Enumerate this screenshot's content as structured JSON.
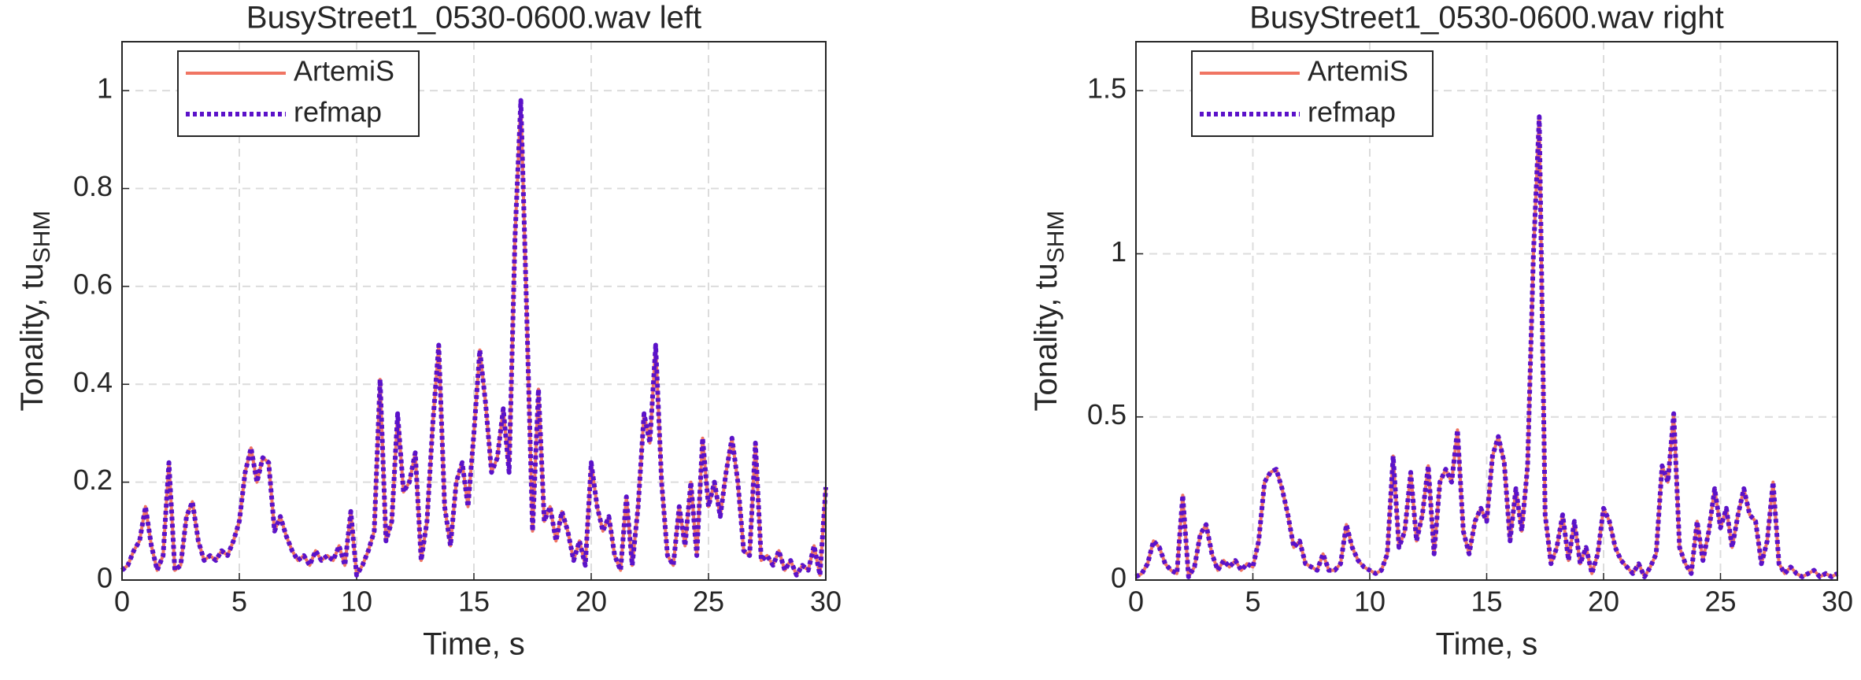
{
  "chart_data": [
    {
      "type": "line",
      "title": "BusyStreet1_0530-0600.wav left",
      "xlabel": "Time, s",
      "ylabel": "Tonality, tu",
      "ylabel_sub": "SHM",
      "xlim": [
        0,
        30
      ],
      "xticks": [
        0,
        5,
        10,
        15,
        20,
        25,
        30
      ],
      "ylim": [
        0,
        1.1
      ],
      "yticks": [
        0,
        0.2,
        0.4,
        0.6,
        0.8,
        1
      ],
      "grid": true,
      "legend": "upper left",
      "x": [
        0,
        0.25,
        0.5,
        0.75,
        1,
        1.25,
        1.5,
        1.75,
        2,
        2.25,
        2.5,
        2.75,
        3,
        3.25,
        3.5,
        3.75,
        4,
        4.25,
        4.5,
        4.75,
        5,
        5.25,
        5.5,
        5.75,
        6,
        6.25,
        6.5,
        6.75,
        7,
        7.25,
        7.5,
        7.75,
        8,
        8.25,
        8.5,
        8.75,
        9,
        9.25,
        9.5,
        9.75,
        10,
        10.25,
        10.5,
        10.75,
        11,
        11.25,
        11.5,
        11.75,
        12,
        12.25,
        12.5,
        12.75,
        13,
        13.25,
        13.5,
        13.75,
        14,
        14.25,
        14.5,
        14.75,
        15,
        15.25,
        15.5,
        15.75,
        16,
        16.25,
        16.5,
        16.75,
        17,
        17.25,
        17.5,
        17.75,
        18,
        18.25,
        18.5,
        18.75,
        19,
        19.25,
        19.5,
        19.75,
        20,
        20.25,
        20.5,
        20.75,
        21,
        21.25,
        21.5,
        21.75,
        22,
        22.25,
        22.5,
        22.75,
        23,
        23.25,
        23.5,
        23.75,
        24,
        24.25,
        24.5,
        24.75,
        25,
        25.25,
        25.5,
        25.75,
        26,
        26.25,
        26.5,
        26.75,
        27,
        27.25,
        27.5,
        27.75,
        28,
        28.25,
        28.5,
        28.75,
        29,
        29.25,
        29.5,
        29.75,
        30
      ],
      "series": [
        {
          "name": "ArtemiS",
          "color": "#f07563",
          "style": "solid",
          "values": [
            0.02,
            0.03,
            0.06,
            0.08,
            0.15,
            0.07,
            0.02,
            0.05,
            0.24,
            0.02,
            0.03,
            0.13,
            0.16,
            0.08,
            0.04,
            0.05,
            0.04,
            0.06,
            0.05,
            0.08,
            0.12,
            0.22,
            0.27,
            0.2,
            0.25,
            0.24,
            0.1,
            0.13,
            0.09,
            0.06,
            0.04,
            0.05,
            0.03,
            0.06,
            0.04,
            0.05,
            0.04,
            0.07,
            0.03,
            0.14,
            0.01,
            0.03,
            0.06,
            0.1,
            0.41,
            0.08,
            0.12,
            0.34,
            0.18,
            0.2,
            0.26,
            0.04,
            0.12,
            0.32,
            0.48,
            0.15,
            0.07,
            0.2,
            0.24,
            0.15,
            0.3,
            0.47,
            0.36,
            0.22,
            0.25,
            0.35,
            0.22,
            0.7,
            0.98,
            0.55,
            0.1,
            0.39,
            0.12,
            0.15,
            0.08,
            0.14,
            0.1,
            0.04,
            0.08,
            0.03,
            0.24,
            0.15,
            0.1,
            0.13,
            0.05,
            0.02,
            0.17,
            0.03,
            0.15,
            0.34,
            0.28,
            0.48,
            0.2,
            0.05,
            0.03,
            0.15,
            0.07,
            0.2,
            0.05,
            0.29,
            0.15,
            0.2,
            0.13,
            0.22,
            0.29,
            0.2,
            0.06,
            0.05,
            0.28,
            0.04,
            0.05,
            0.03,
            0.06,
            0.02,
            0.04,
            0.01,
            0.03,
            0.02,
            0.07,
            0.01,
            0.19
          ]
        },
        {
          "name": "refmap",
          "color": "#5b12c9",
          "style": "dotted",
          "values": [
            0.02,
            0.03,
            0.06,
            0.08,
            0.15,
            0.07,
            0.02,
            0.05,
            0.24,
            0.02,
            0.03,
            0.13,
            0.16,
            0.08,
            0.04,
            0.05,
            0.04,
            0.06,
            0.05,
            0.08,
            0.12,
            0.22,
            0.27,
            0.2,
            0.25,
            0.24,
            0.1,
            0.13,
            0.09,
            0.06,
            0.04,
            0.05,
            0.03,
            0.06,
            0.04,
            0.05,
            0.04,
            0.07,
            0.03,
            0.14,
            0.01,
            0.03,
            0.06,
            0.1,
            0.41,
            0.08,
            0.12,
            0.34,
            0.18,
            0.2,
            0.26,
            0.04,
            0.12,
            0.32,
            0.48,
            0.15,
            0.07,
            0.2,
            0.24,
            0.15,
            0.3,
            0.47,
            0.36,
            0.22,
            0.25,
            0.35,
            0.22,
            0.7,
            0.98,
            0.55,
            0.1,
            0.39,
            0.12,
            0.15,
            0.08,
            0.14,
            0.1,
            0.04,
            0.08,
            0.03,
            0.24,
            0.15,
            0.1,
            0.13,
            0.05,
            0.02,
            0.17,
            0.03,
            0.15,
            0.34,
            0.28,
            0.48,
            0.2,
            0.05,
            0.03,
            0.15,
            0.07,
            0.2,
            0.05,
            0.29,
            0.15,
            0.2,
            0.13,
            0.22,
            0.29,
            0.2,
            0.06,
            0.05,
            0.28,
            0.04,
            0.05,
            0.03,
            0.06,
            0.02,
            0.04,
            0.01,
            0.03,
            0.02,
            0.07,
            0.01,
            0.19
          ]
        }
      ]
    },
    {
      "type": "line",
      "title": "BusyStreet1_0530-0600.wav right",
      "xlabel": "Time, s",
      "ylabel": "Tonality, tu",
      "ylabel_sub": "SHM",
      "xlim": [
        0,
        30
      ],
      "xticks": [
        0,
        5,
        10,
        15,
        20,
        25,
        30
      ],
      "ylim": [
        0,
        1.65
      ],
      "yticks": [
        0,
        0.5,
        1,
        1.5
      ],
      "grid": true,
      "legend": "upper left",
      "x": [
        0,
        0.25,
        0.5,
        0.75,
        1,
        1.25,
        1.5,
        1.75,
        2,
        2.25,
        2.5,
        2.75,
        3,
        3.25,
        3.5,
        3.75,
        4,
        4.25,
        4.5,
        4.75,
        5,
        5.25,
        5.5,
        5.75,
        6,
        6.25,
        6.5,
        6.75,
        7,
        7.25,
        7.5,
        7.75,
        8,
        8.25,
        8.5,
        8.75,
        9,
        9.25,
        9.5,
        9.75,
        10,
        10.25,
        10.5,
        10.75,
        11,
        11.25,
        11.5,
        11.75,
        12,
        12.25,
        12.5,
        12.75,
        13,
        13.25,
        13.5,
        13.75,
        14,
        14.25,
        14.5,
        14.75,
        15,
        15.25,
        15.5,
        15.75,
        16,
        16.25,
        16.5,
        16.75,
        17,
        17.25,
        17.5,
        17.75,
        18,
        18.25,
        18.5,
        18.75,
        19,
        19.25,
        19.5,
        19.75,
        20,
        20.25,
        20.5,
        20.75,
        21,
        21.25,
        21.5,
        21.75,
        22,
        22.25,
        22.5,
        22.75,
        23,
        23.25,
        23.5,
        23.75,
        24,
        24.25,
        24.5,
        24.75,
        25,
        25.25,
        25.5,
        25.75,
        26,
        26.25,
        26.5,
        26.75,
        27,
        27.25,
        27.5,
        27.75,
        28,
        28.25,
        28.5,
        28.75,
        29,
        29.25,
        29.5,
        29.75,
        30
      ],
      "series": [
        {
          "name": "ArtemiS",
          "color": "#f07563",
          "style": "solid",
          "values": [
            0.01,
            0.02,
            0.05,
            0.12,
            0.1,
            0.05,
            0.03,
            0.02,
            0.26,
            0.01,
            0.04,
            0.14,
            0.17,
            0.08,
            0.03,
            0.06,
            0.04,
            0.06,
            0.03,
            0.05,
            0.04,
            0.12,
            0.3,
            0.33,
            0.34,
            0.28,
            0.2,
            0.1,
            0.12,
            0.05,
            0.04,
            0.03,
            0.08,
            0.03,
            0.03,
            0.05,
            0.17,
            0.1,
            0.06,
            0.04,
            0.03,
            0.02,
            0.03,
            0.08,
            0.38,
            0.1,
            0.15,
            0.33,
            0.12,
            0.2,
            0.35,
            0.08,
            0.3,
            0.34,
            0.3,
            0.46,
            0.15,
            0.08,
            0.18,
            0.22,
            0.18,
            0.38,
            0.44,
            0.36,
            0.12,
            0.28,
            0.15,
            0.35,
            1.0,
            1.42,
            0.2,
            0.05,
            0.1,
            0.2,
            0.06,
            0.18,
            0.05,
            0.1,
            0.02,
            0.08,
            0.22,
            0.18,
            0.1,
            0.06,
            0.04,
            0.02,
            0.05,
            0.01,
            0.04,
            0.08,
            0.35,
            0.3,
            0.51,
            0.1,
            0.05,
            0.02,
            0.18,
            0.06,
            0.15,
            0.28,
            0.16,
            0.22,
            0.1,
            0.2,
            0.28,
            0.2,
            0.18,
            0.05,
            0.12,
            0.3,
            0.05,
            0.02,
            0.04,
            0.02,
            0.01,
            0.02,
            0.03,
            0.01,
            0.02,
            0.01,
            0.02
          ]
        },
        {
          "name": "refmap",
          "color": "#5b12c9",
          "style": "dotted",
          "values": [
            0.01,
            0.02,
            0.05,
            0.12,
            0.1,
            0.05,
            0.03,
            0.02,
            0.26,
            0.01,
            0.04,
            0.14,
            0.17,
            0.08,
            0.03,
            0.06,
            0.04,
            0.06,
            0.03,
            0.05,
            0.04,
            0.12,
            0.3,
            0.33,
            0.34,
            0.28,
            0.2,
            0.1,
            0.12,
            0.05,
            0.04,
            0.03,
            0.08,
            0.03,
            0.03,
            0.05,
            0.17,
            0.1,
            0.06,
            0.04,
            0.03,
            0.02,
            0.03,
            0.08,
            0.38,
            0.1,
            0.15,
            0.33,
            0.12,
            0.2,
            0.35,
            0.08,
            0.3,
            0.34,
            0.3,
            0.46,
            0.15,
            0.08,
            0.18,
            0.22,
            0.18,
            0.38,
            0.44,
            0.36,
            0.12,
            0.28,
            0.15,
            0.35,
            1.0,
            1.42,
            0.2,
            0.05,
            0.1,
            0.2,
            0.06,
            0.18,
            0.05,
            0.1,
            0.02,
            0.08,
            0.22,
            0.18,
            0.1,
            0.06,
            0.04,
            0.02,
            0.05,
            0.01,
            0.04,
            0.08,
            0.35,
            0.3,
            0.51,
            0.1,
            0.05,
            0.02,
            0.18,
            0.06,
            0.15,
            0.28,
            0.16,
            0.22,
            0.1,
            0.2,
            0.28,
            0.2,
            0.18,
            0.05,
            0.12,
            0.3,
            0.05,
            0.02,
            0.04,
            0.02,
            0.01,
            0.02,
            0.03,
            0.01,
            0.02,
            0.01,
            0.02
          ]
        }
      ]
    }
  ]
}
